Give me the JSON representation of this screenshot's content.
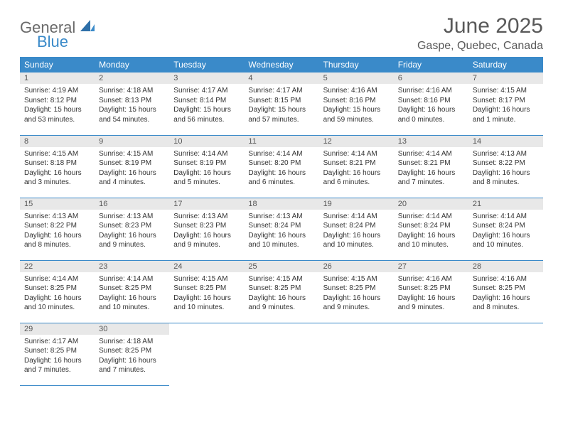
{
  "brand": {
    "word1": "General",
    "word2": "Blue"
  },
  "title": "June 2025",
  "location": "Gaspe, Quebec, Canada",
  "colors": {
    "header_bg": "#3a8ac9",
    "daynum_bg": "#e8e8e8",
    "text": "#333333",
    "title": "#595959"
  },
  "weekdays": [
    "Sunday",
    "Monday",
    "Tuesday",
    "Wednesday",
    "Thursday",
    "Friday",
    "Saturday"
  ],
  "weeks": [
    [
      {
        "n": "1",
        "sr": "Sunrise: 4:19 AM",
        "ss": "Sunset: 8:12 PM",
        "dl": "Daylight: 15 hours and 53 minutes."
      },
      {
        "n": "2",
        "sr": "Sunrise: 4:18 AM",
        "ss": "Sunset: 8:13 PM",
        "dl": "Daylight: 15 hours and 54 minutes."
      },
      {
        "n": "3",
        "sr": "Sunrise: 4:17 AM",
        "ss": "Sunset: 8:14 PM",
        "dl": "Daylight: 15 hours and 56 minutes."
      },
      {
        "n": "4",
        "sr": "Sunrise: 4:17 AM",
        "ss": "Sunset: 8:15 PM",
        "dl": "Daylight: 15 hours and 57 minutes."
      },
      {
        "n": "5",
        "sr": "Sunrise: 4:16 AM",
        "ss": "Sunset: 8:16 PM",
        "dl": "Daylight: 15 hours and 59 minutes."
      },
      {
        "n": "6",
        "sr": "Sunrise: 4:16 AM",
        "ss": "Sunset: 8:16 PM",
        "dl": "Daylight: 16 hours and 0 minutes."
      },
      {
        "n": "7",
        "sr": "Sunrise: 4:15 AM",
        "ss": "Sunset: 8:17 PM",
        "dl": "Daylight: 16 hours and 1 minute."
      }
    ],
    [
      {
        "n": "8",
        "sr": "Sunrise: 4:15 AM",
        "ss": "Sunset: 8:18 PM",
        "dl": "Daylight: 16 hours and 3 minutes."
      },
      {
        "n": "9",
        "sr": "Sunrise: 4:15 AM",
        "ss": "Sunset: 8:19 PM",
        "dl": "Daylight: 16 hours and 4 minutes."
      },
      {
        "n": "10",
        "sr": "Sunrise: 4:14 AM",
        "ss": "Sunset: 8:19 PM",
        "dl": "Daylight: 16 hours and 5 minutes."
      },
      {
        "n": "11",
        "sr": "Sunrise: 4:14 AM",
        "ss": "Sunset: 8:20 PM",
        "dl": "Daylight: 16 hours and 6 minutes."
      },
      {
        "n": "12",
        "sr": "Sunrise: 4:14 AM",
        "ss": "Sunset: 8:21 PM",
        "dl": "Daylight: 16 hours and 6 minutes."
      },
      {
        "n": "13",
        "sr": "Sunrise: 4:14 AM",
        "ss": "Sunset: 8:21 PM",
        "dl": "Daylight: 16 hours and 7 minutes."
      },
      {
        "n": "14",
        "sr": "Sunrise: 4:13 AM",
        "ss": "Sunset: 8:22 PM",
        "dl": "Daylight: 16 hours and 8 minutes."
      }
    ],
    [
      {
        "n": "15",
        "sr": "Sunrise: 4:13 AM",
        "ss": "Sunset: 8:22 PM",
        "dl": "Daylight: 16 hours and 8 minutes."
      },
      {
        "n": "16",
        "sr": "Sunrise: 4:13 AM",
        "ss": "Sunset: 8:23 PM",
        "dl": "Daylight: 16 hours and 9 minutes."
      },
      {
        "n": "17",
        "sr": "Sunrise: 4:13 AM",
        "ss": "Sunset: 8:23 PM",
        "dl": "Daylight: 16 hours and 9 minutes."
      },
      {
        "n": "18",
        "sr": "Sunrise: 4:13 AM",
        "ss": "Sunset: 8:24 PM",
        "dl": "Daylight: 16 hours and 10 minutes."
      },
      {
        "n": "19",
        "sr": "Sunrise: 4:14 AM",
        "ss": "Sunset: 8:24 PM",
        "dl": "Daylight: 16 hours and 10 minutes."
      },
      {
        "n": "20",
        "sr": "Sunrise: 4:14 AM",
        "ss": "Sunset: 8:24 PM",
        "dl": "Daylight: 16 hours and 10 minutes."
      },
      {
        "n": "21",
        "sr": "Sunrise: 4:14 AM",
        "ss": "Sunset: 8:24 PM",
        "dl": "Daylight: 16 hours and 10 minutes."
      }
    ],
    [
      {
        "n": "22",
        "sr": "Sunrise: 4:14 AM",
        "ss": "Sunset: 8:25 PM",
        "dl": "Daylight: 16 hours and 10 minutes."
      },
      {
        "n": "23",
        "sr": "Sunrise: 4:14 AM",
        "ss": "Sunset: 8:25 PM",
        "dl": "Daylight: 16 hours and 10 minutes."
      },
      {
        "n": "24",
        "sr": "Sunrise: 4:15 AM",
        "ss": "Sunset: 8:25 PM",
        "dl": "Daylight: 16 hours and 10 minutes."
      },
      {
        "n": "25",
        "sr": "Sunrise: 4:15 AM",
        "ss": "Sunset: 8:25 PM",
        "dl": "Daylight: 16 hours and 9 minutes."
      },
      {
        "n": "26",
        "sr": "Sunrise: 4:15 AM",
        "ss": "Sunset: 8:25 PM",
        "dl": "Daylight: 16 hours and 9 minutes."
      },
      {
        "n": "27",
        "sr": "Sunrise: 4:16 AM",
        "ss": "Sunset: 8:25 PM",
        "dl": "Daylight: 16 hours and 9 minutes."
      },
      {
        "n": "28",
        "sr": "Sunrise: 4:16 AM",
        "ss": "Sunset: 8:25 PM",
        "dl": "Daylight: 16 hours and 8 minutes."
      }
    ],
    [
      {
        "n": "29",
        "sr": "Sunrise: 4:17 AM",
        "ss": "Sunset: 8:25 PM",
        "dl": "Daylight: 16 hours and 7 minutes."
      },
      {
        "n": "30",
        "sr": "Sunrise: 4:18 AM",
        "ss": "Sunset: 8:25 PM",
        "dl": "Daylight: 16 hours and 7 minutes."
      },
      null,
      null,
      null,
      null,
      null
    ]
  ]
}
